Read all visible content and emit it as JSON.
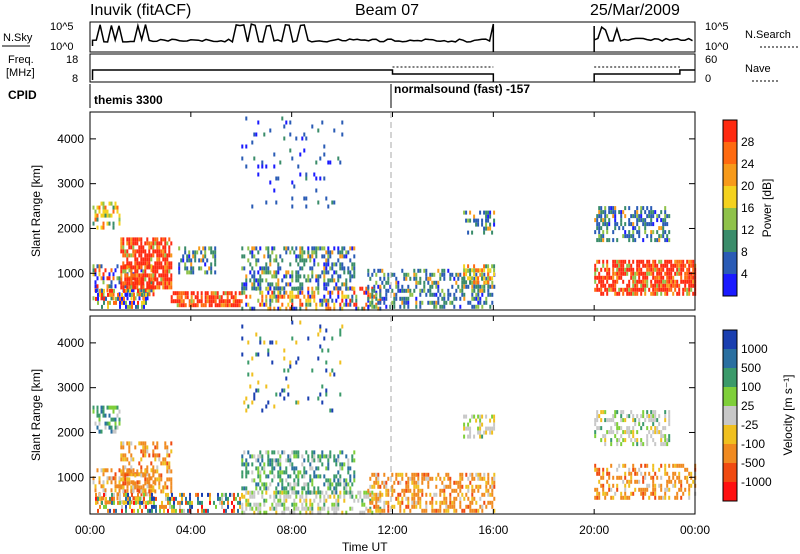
{
  "header": {
    "radar": "Inuvik (fitACF)",
    "beam": "Beam 07",
    "date": "25/Mar/2009"
  },
  "nsky_panel": {
    "left_label": "N.Sky",
    "left_ticks": [
      "10^5",
      "10^0"
    ],
    "right_label": "N.Search",
    "right_ticks": [
      "10^5",
      "10^0"
    ]
  },
  "freq_panel": {
    "left_label_line1": "Freq.",
    "left_label_line2": "[MHz]",
    "left_ticks": [
      "18",
      "8"
    ],
    "right_label": "Nave",
    "right_ticks": [
      "60",
      "0"
    ]
  },
  "cpid": {
    "label": "CPID",
    "modes": [
      "themis 3300",
      "normalsound (fast) -157"
    ]
  },
  "x_axis": {
    "label": "Time UT",
    "ticks": [
      "00:00",
      "04:00",
      "08:00",
      "12:00",
      "16:00",
      "20:00",
      "00:00"
    ]
  },
  "y_axis": {
    "label": "Slant Range [km]",
    "ticks": [
      "1000",
      "2000",
      "3000",
      "4000"
    ]
  },
  "power_colorbar": {
    "label": "Power [dB]",
    "ticks": [
      "4",
      "8",
      "12",
      "16",
      "20",
      "24",
      "28"
    ],
    "colors": [
      "#1a1aff",
      "#2a5bb5",
      "#3a8c6a",
      "#8fc24a",
      "#f4d21e",
      "#f79a1a",
      "#ff6a10",
      "#ff2a10"
    ]
  },
  "velocity_colorbar": {
    "label": "Velocity [m s⁻¹]",
    "ticks": [
      "1000",
      "500",
      "100",
      "25",
      "-25",
      "-100",
      "-500",
      "-1000"
    ],
    "colors": [
      "#1a3fb0",
      "#2a6fa0",
      "#3b9a6a",
      "#7fcf3a",
      "#c8c8c8",
      "#f0c020",
      "#f08a20",
      "#f04a10",
      "#ff1010"
    ]
  },
  "chart_data": [
    {
      "type": "heatmap",
      "title": "Power [dB]",
      "xlabel": "Time UT",
      "ylabel": "Slant Range [km]",
      "xlim": [
        0,
        24
      ],
      "ylim": [
        180,
        4600
      ],
      "scatter_regions": [
        {
          "t0": 0.1,
          "t1": 1.2,
          "r0": 2000,
          "r1": 2600,
          "level": "mid"
        },
        {
          "t0": 0.1,
          "t1": 2.5,
          "r0": 400,
          "r1": 1200,
          "level": "mixed"
        },
        {
          "t0": 1.2,
          "t1": 3.2,
          "r0": 700,
          "r1": 1800,
          "level": "high"
        },
        {
          "t0": 0.2,
          "t1": 2.2,
          "r0": 250,
          "r1": 650,
          "level": "mixed"
        },
        {
          "t0": 3.2,
          "t1": 6.0,
          "r0": 250,
          "r1": 600,
          "level": "high"
        },
        {
          "t0": 3.5,
          "t1": 5.0,
          "r0": 1000,
          "r1": 1600,
          "level": "low"
        },
        {
          "t0": 6.0,
          "t1": 11.5,
          "r0": 250,
          "r1": 700,
          "level": "mixed"
        },
        {
          "t0": 6.0,
          "t1": 10.5,
          "r0": 700,
          "r1": 1600,
          "level": "low"
        },
        {
          "t0": 6.0,
          "t1": 10.0,
          "r0": 2500,
          "r1": 4500,
          "level": "sparse"
        },
        {
          "t0": 11.0,
          "t1": 16.0,
          "r0": 250,
          "r1": 1100,
          "level": "low"
        },
        {
          "t0": 14.8,
          "t1": 16.0,
          "r0": 800,
          "r1": 1200,
          "level": "mid"
        },
        {
          "t0": 14.8,
          "t1": 16.0,
          "r0": 1900,
          "r1": 2400,
          "level": "low"
        },
        {
          "t0": 20.0,
          "t1": 24.0,
          "r0": 550,
          "r1": 1300,
          "level": "high"
        },
        {
          "t0": 20.0,
          "t1": 23.0,
          "r0": 1700,
          "r1": 2500,
          "level": "low"
        }
      ]
    },
    {
      "type": "heatmap",
      "title": "Velocity [m s⁻¹]",
      "xlabel": "Time UT",
      "ylabel": "Slant Range [km]",
      "xlim": [
        0,
        24
      ],
      "ylim": [
        180,
        4600
      ],
      "scatter_regions": [
        {
          "t0": 0.1,
          "t1": 1.2,
          "r0": 2000,
          "r1": 2600,
          "level": "pos"
        },
        {
          "t0": 0.1,
          "t1": 2.5,
          "r0": 400,
          "r1": 1200,
          "level": "neg"
        },
        {
          "t0": 1.2,
          "t1": 3.2,
          "r0": 700,
          "r1": 1800,
          "level": "neg"
        },
        {
          "t0": 0.2,
          "t1": 6.0,
          "r0": 250,
          "r1": 650,
          "level": "mixed"
        },
        {
          "t0": 6.0,
          "t1": 11.5,
          "r0": 250,
          "r1": 700,
          "level": "zero"
        },
        {
          "t0": 6.0,
          "t1": 10.5,
          "r0": 700,
          "r1": 1600,
          "level": "pos"
        },
        {
          "t0": 6.0,
          "t1": 10.0,
          "r0": 2500,
          "r1": 4500,
          "level": "sparse"
        },
        {
          "t0": 11.0,
          "t1": 16.0,
          "r0": 250,
          "r1": 1100,
          "level": "neg"
        },
        {
          "t0": 14.8,
          "t1": 16.0,
          "r0": 1900,
          "r1": 2400,
          "level": "zero"
        },
        {
          "t0": 20.0,
          "t1": 24.0,
          "r0": 550,
          "r1": 1300,
          "level": "neg"
        },
        {
          "t0": 20.0,
          "t1": 23.0,
          "r0": 1700,
          "r1": 2500,
          "level": "zero"
        }
      ]
    }
  ]
}
